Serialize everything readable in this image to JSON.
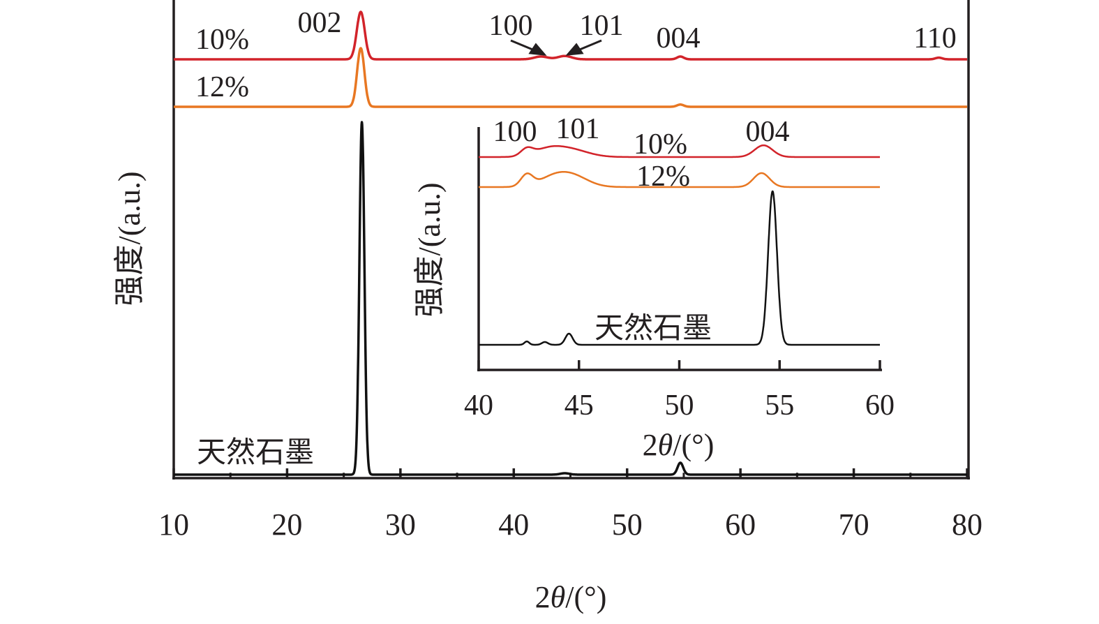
{
  "chart_data": [
    {
      "type": "line",
      "xlabel_prefix": "2",
      "xlabel_theta": "θ",
      "xlabel_suffix": "/(°)",
      "ylabel": "强度/(a.u.)",
      "xlim": [
        10,
        80
      ],
      "xticks": [
        "10",
        "20",
        "30",
        "40",
        "50",
        "60",
        "70",
        "80"
      ],
      "grid": false,
      "series": [
        {
          "name": "10%",
          "color": "#d2232a",
          "baseline": 0.1,
          "peaks": [
            [
              26.5,
              0.85,
              0.35
            ],
            [
              42.4,
              0.05,
              0.6
            ],
            [
              44.5,
              0.06,
              0.6
            ],
            [
              54.7,
              0.05,
              0.3
            ],
            [
              77.5,
              0.03,
              0.3
            ]
          ]
        },
        {
          "name": "12%",
          "color": "#e87722",
          "baseline": 0.1,
          "peaks": [
            [
              26.5,
              1.05,
              0.32
            ],
            [
              54.7,
              0.04,
              0.3
            ]
          ]
        },
        {
          "name": "天然石墨",
          "color": "#111111",
          "baseline": 0.05,
          "peaks": [
            [
              26.6,
              5.05,
              0.22
            ],
            [
              54.7,
              0.17,
              0.25
            ],
            [
              44.5,
              0.02,
              0.4
            ]
          ]
        }
      ],
      "peak_labels": [
        "002",
        "100",
        "101",
        "004",
        "110"
      ]
    },
    {
      "type": "line",
      "role": "inset",
      "xlabel_prefix": "2",
      "xlabel_theta": "θ",
      "xlabel_suffix": "/(°)",
      "ylabel": "强度/(a.u.)",
      "xlim": [
        40,
        60
      ],
      "xticks": [
        "40",
        "45",
        "50",
        "55",
        "60"
      ],
      "series": [
        {
          "name": "10%",
          "color": "#d2232a",
          "baseline": 0.0,
          "peaks": [
            [
              42.4,
              0.25,
              0.3
            ],
            [
              43.4,
              0.22,
              0.7
            ],
            [
              44.5,
              0.28,
              0.9
            ],
            [
              54.2,
              0.42,
              0.45
            ]
          ]
        },
        {
          "name": "12%",
          "color": "#e87722",
          "baseline": 0.0,
          "peaks": [
            [
              42.4,
              0.42,
              0.3
            ],
            [
              43.6,
              0.25,
              0.7
            ],
            [
              44.6,
              0.42,
              0.8
            ],
            [
              54.1,
              0.5,
              0.4
            ]
          ]
        },
        {
          "name": "天然石墨",
          "color": "#111111",
          "baseline": 0.0,
          "peaks": [
            [
              42.4,
              0.12,
              0.12
            ],
            [
              43.3,
              0.1,
              0.15
            ],
            [
              44.5,
              0.4,
              0.18
            ],
            [
              54.65,
              5.5,
              0.22
            ]
          ]
        }
      ],
      "peak_labels": [
        "100",
        "101",
        "004"
      ]
    }
  ]
}
